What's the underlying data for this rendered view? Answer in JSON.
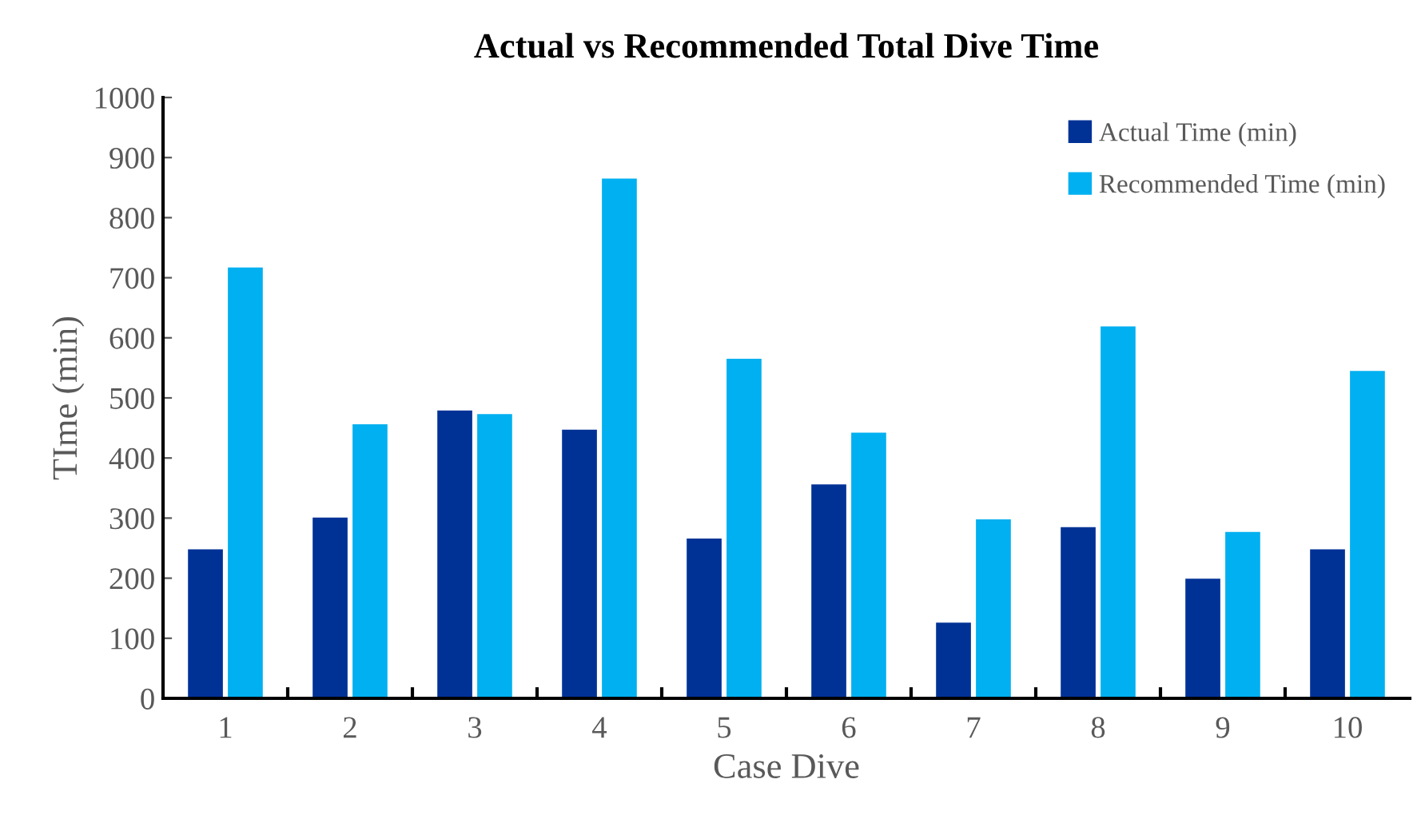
{
  "chart_data": {
    "type": "bar",
    "title": "Actual vs Recommended Total Dive Time",
    "xlabel": "Case Dive",
    "ylabel": "TIme (min)",
    "categories": [
      "1",
      "2",
      "3",
      "4",
      "5",
      "6",
      "7",
      "8",
      "9",
      "10"
    ],
    "series": [
      {
        "name": "Actual Time (min)",
        "color": "#003296",
        "values": [
          248,
          301,
          479,
          447,
          266,
          356,
          126,
          285,
          199,
          248
        ]
      },
      {
        "name": "Recommended Time (min)",
        "color": "#00b0f0",
        "values": [
          717,
          456,
          473,
          865,
          565,
          442,
          298,
          619,
          277,
          545
        ]
      }
    ],
    "ylim": [
      0,
      1000
    ],
    "yticks": [
      0,
      100,
      200,
      300,
      400,
      500,
      600,
      700,
      800,
      900,
      1000
    ],
    "grid": false,
    "legend": "top right"
  }
}
